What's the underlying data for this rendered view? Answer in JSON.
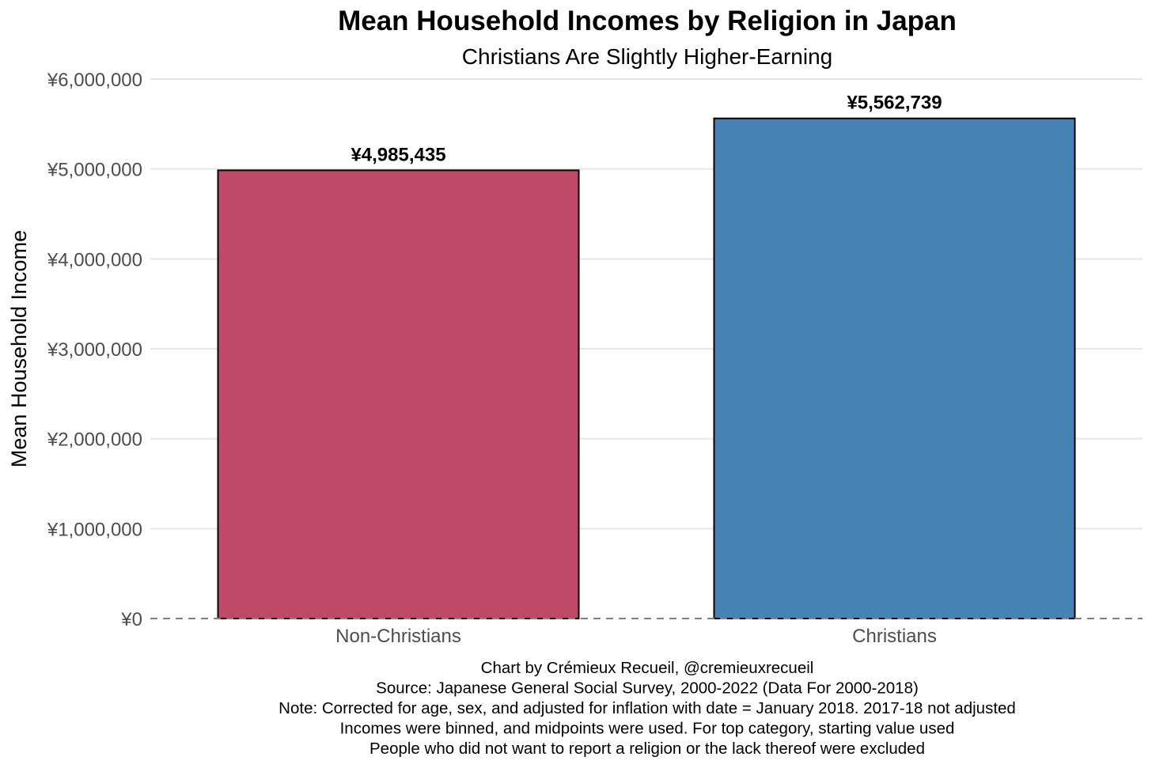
{
  "chart_data": {
    "type": "bar",
    "title": "Mean Household Incomes by Religion in Japan",
    "subtitle": "Christians Are Slightly Higher-Earning",
    "xlabel": "",
    "ylabel": "Mean Household Income",
    "categories": [
      "Non-Christians",
      "Christians"
    ],
    "values": [
      4985435,
      5562739
    ],
    "data_labels": [
      "¥4,985,435",
      "¥5,562,739"
    ],
    "colors": [
      "#be4a68",
      "#4682b4"
    ],
    "ylim": [
      0,
      6000000
    ],
    "y_ticks": [
      0,
      1000000,
      2000000,
      3000000,
      4000000,
      5000000,
      6000000
    ],
    "y_tick_labels": [
      "¥0",
      "¥1,000,000",
      "¥2,000,000",
      "¥3,000,000",
      "¥4,000,000",
      "¥5,000,000",
      "¥6,000,000"
    ],
    "grid": true,
    "baseline_style": "dashed",
    "caption": [
      "Chart by Crémieux Recueil, @cremieuxrecueil",
      "Source: Japanese General Social Survey, 2000-2022 (Data For 2000-2018)",
      "Note: Corrected for age, sex, and adjusted for inflation with date = January 2018. 2017-18 not adjusted",
      "Incomes were binned, and midpoints were used. For top category, starting value used",
      "People who did not want to report a religion or the lack thereof were excluded"
    ]
  }
}
